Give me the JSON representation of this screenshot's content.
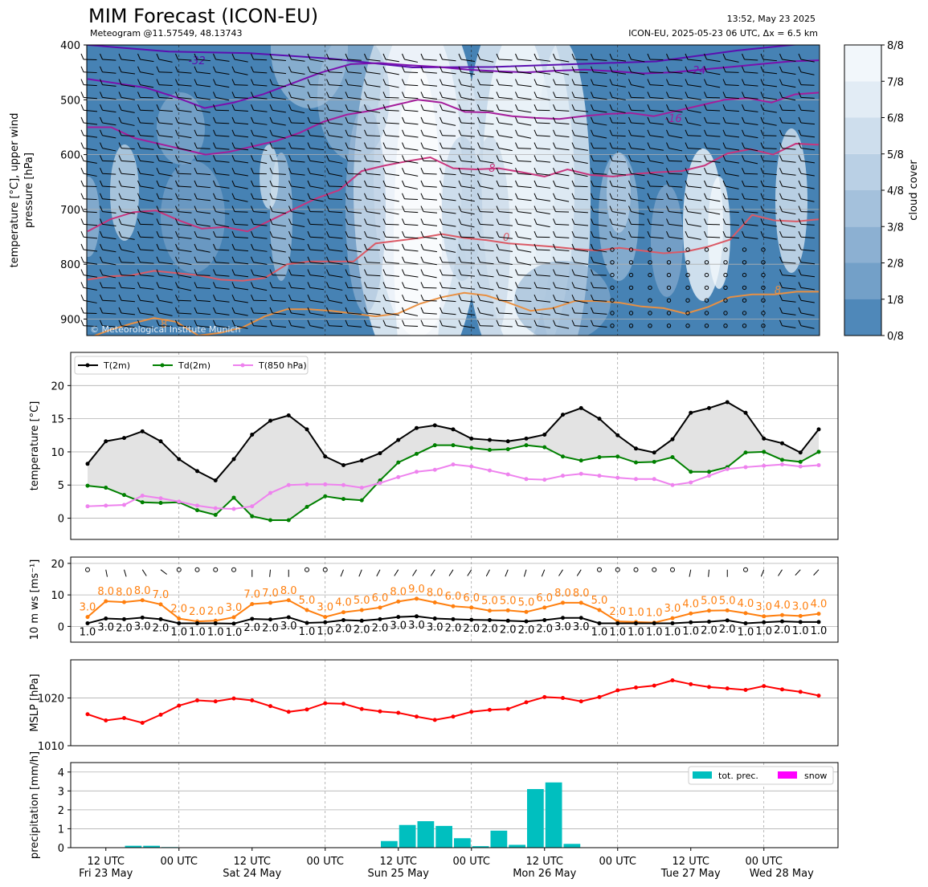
{
  "header": {
    "title": "MIM Forecast (ICON-EU)",
    "subtitle": "Meteogram @11.57549, 48.13743",
    "created": "13:52, May 23 2025",
    "run": "ICON-EU, 2025-05-23 06 UTC, Δx = 6.5 km"
  },
  "colors": {
    "t2m": "#000000",
    "td2m": "#008000",
    "t850": "#ee82ee",
    "ws": "#ff7f0e",
    "mslp": "#ff0000",
    "precip": "#00bfbf",
    "snow": "#ff00ff",
    "cloud_dark": "#4682b4",
    "cloud_light": "#f2f7fb"
  },
  "chart_data": [
    {
      "type": "heatmap",
      "name": "upper-air",
      "ylabel": "temperature [°C], upper wind\npressure [hPa]",
      "y_ticks": [
        400,
        500,
        600,
        700,
        800,
        900
      ],
      "ylim": [
        930,
        400
      ],
      "colorbar_label": "cloud cover",
      "colorbar_ticks": [
        "0/8",
        "1/8",
        "2/8",
        "3/8",
        "4/8",
        "5/8",
        "6/8",
        "7/8",
        "8/8"
      ],
      "isotherm_labels": [
        "-32",
        "-24",
        "-16",
        "-8",
        "0",
        "8"
      ],
      "copyright": "© Meteorological Institute Munich",
      "isotherms": [
        {
          "label": "-32",
          "color": "#5b0fb0",
          "p": [
            400,
            412,
            415,
            425,
            441,
            440,
            435,
            430,
            410,
            395
          ]
        },
        {
          "label": "-24",
          "color": "#7a10ad",
          "p": [
            462,
            470,
            478,
            495,
            515,
            505,
            490,
            470,
            450,
            435,
            433,
            437,
            440,
            445,
            448,
            450,
            447,
            445,
            448,
            452,
            450,
            445,
            440,
            435,
            430,
            428
          ]
        },
        {
          "label": "-16",
          "color": "#a51d9b",
          "p": [
            550,
            550,
            570,
            580,
            590,
            600,
            595,
            585,
            575,
            560,
            540,
            527,
            520,
            510,
            500,
            505,
            522,
            523,
            530,
            533,
            535,
            530,
            526,
            524,
            530,
            520,
            510,
            500,
            497,
            505,
            490,
            487
          ]
        },
        {
          "label": "-8",
          "color": "#c8357d",
          "p": [
            740,
            718,
            705,
            702,
            720,
            735,
            732,
            740,
            720,
            700,
            680,
            665,
            630,
            620,
            612,
            605,
            625,
            627,
            625,
            632,
            640,
            627,
            637,
            640,
            635,
            632,
            630,
            620,
            598,
            590,
            600,
            580,
            582
          ]
        },
        {
          "label": "0",
          "color": "#db5a66",
          "p": [
            828,
            822,
            820,
            812,
            816,
            820,
            828,
            830,
            825,
            800,
            795,
            795,
            795,
            762,
            757,
            752,
            745,
            752,
            756,
            762,
            765,
            768,
            772,
            775,
            770,
            775,
            780,
            777,
            768,
            755,
            710,
            720,
            722,
            718
          ]
        },
        {
          "label": "8",
          "color": "#e89043",
          "p": [
            935,
            920,
            908,
            898,
            905,
            930,
            925,
            915,
            895,
            882,
            882,
            885,
            890,
            895,
            890,
            872,
            860,
            852,
            857,
            870,
            885,
            880,
            867,
            867,
            870,
            877,
            880,
            890,
            878,
            860,
            855,
            855,
            850,
            850
          ]
        }
      ]
    },
    {
      "type": "line",
      "name": "temperature",
      "ylabel": "temperature [°C]",
      "ylim": [
        -3.2,
        25
      ],
      "y_ticks": [
        0,
        5,
        10,
        15,
        20
      ],
      "legend_position": "top-left",
      "series": [
        {
          "name": "T(2m)",
          "color": "#000000",
          "values": [
            8.2,
            11.6,
            12.1,
            13.1,
            11.6,
            8.9,
            7.1,
            5.7,
            8.9,
            12.6,
            14.7,
            15.5,
            13.4,
            9.3,
            8.0,
            8.7,
            9.8,
            11.8,
            13.6,
            14.0,
            13.4,
            12.0,
            11.8,
            11.6,
            12.0,
            12.6,
            15.6,
            16.6,
            15.0,
            12.5,
            10.5,
            9.9,
            11.9,
            15.9,
            16.6,
            17.5,
            15.9,
            12.0,
            11.3,
            9.9,
            13.4
          ]
        },
        {
          "name": "Td(2m)",
          "color": "#008000",
          "values": [
            4.9,
            4.6,
            3.5,
            2.4,
            2.3,
            2.4,
            1.2,
            0.5,
            3.1,
            0.3,
            -0.3,
            -0.3,
            1.7,
            3.3,
            2.9,
            2.7,
            5.7,
            8.4,
            9.7,
            11.0,
            11.0,
            10.6,
            10.3,
            10.4,
            11.0,
            10.7,
            9.3,
            8.7,
            9.2,
            9.3,
            8.4,
            8.5,
            9.2,
            7.0,
            7.0,
            7.7,
            9.9,
            10.0,
            8.8,
            8.5,
            10.0
          ]
        },
        {
          "name": "T(850 hPa)",
          "color": "#ee82ee",
          "values": [
            1.8,
            1.9,
            2.0,
            3.4,
            3.0,
            2.5,
            1.9,
            1.5,
            1.4,
            1.8,
            3.8,
            5.0,
            5.1,
            5.1,
            5.0,
            4.6,
            5.3,
            6.2,
            7.0,
            7.3,
            8.1,
            7.8,
            7.2,
            6.6,
            5.9,
            5.8,
            6.4,
            6.7,
            6.4,
            6.1,
            5.9,
            5.9,
            5.0,
            5.4,
            6.4,
            7.4,
            7.7,
            7.9,
            8.1,
            7.8,
            8.0
          ]
        }
      ]
    },
    {
      "type": "line",
      "name": "wind",
      "ylabel": "10 m ws [ms⁻¹]",
      "ylim": [
        -5,
        22
      ],
      "y_ticks": [
        0,
        10,
        20
      ],
      "series": [
        {
          "name": "ws",
          "color": "#000000",
          "values": [
            1.0,
            2.5,
            2.3,
            2.8,
            2.3,
            1.0,
            1.0,
            1.0,
            0.9,
            2.4,
            2.2,
            2.9,
            1.1,
            1.3,
            2.0,
            1.8,
            2.3,
            3.0,
            3.2,
            2.5,
            2.3,
            2.1,
            2.0,
            1.8,
            1.6,
            2.0,
            2.7,
            2.7,
            1.0,
            1.0,
            1.0,
            1.0,
            1.0,
            1.3,
            1.5,
            1.9,
            1.0,
            1.3,
            1.6,
            1.4,
            1.4
          ]
        },
        {
          "name": "gust",
          "color": "#ff7f0e",
          "values": [
            3.0,
            8.0,
            7.7,
            8.3,
            7.0,
            2.5,
            1.6,
            1.8,
            2.9,
            7.1,
            7.5,
            8.3,
            5.2,
            3.0,
            4.5,
            5.2,
            6.0,
            7.9,
            8.8,
            7.6,
            6.4,
            6.0,
            5.0,
            5.1,
            4.6,
            6.0,
            7.5,
            7.5,
            5.2,
            1.6,
            1.4,
            1.2,
            2.6,
            4.1,
            5.0,
            5.1,
            4.2,
            3.2,
            3.6,
            3.3,
            4.0
          ]
        }
      ],
      "gust_labels": [
        "3.0",
        "8.0",
        "8.0",
        "8.0",
        "7.0",
        "2.0",
        "2.0",
        "2.0",
        "3.0",
        "7.0",
        "7.0",
        "8.0",
        "5.0",
        "3.0",
        "4.0",
        "5.0",
        "6.0",
        "8.0",
        "9.0",
        "8.0",
        "6.0",
        "6.0",
        "5.0",
        "5.0",
        "5.0",
        "6.0",
        "8.0",
        "8.0",
        "5.0",
        "2.0",
        "1.0",
        "1.0",
        "3.0",
        "4.0",
        "5.0",
        "5.0",
        "4.0",
        "3.0",
        "4.0",
        "3.0",
        "4.0"
      ],
      "ws_labels": [
        "1.0",
        "3.0",
        "2.0",
        "3.0",
        "2.0",
        "1.0",
        "1.0",
        "1.0",
        "1.0",
        "2.0",
        "2.0",
        "3.0",
        "1.0",
        "1.0",
        "2.0",
        "2.0",
        "2.0",
        "3.0",
        "3.0",
        "3.0",
        "2.0",
        "2.0",
        "2.0",
        "2.0",
        "2.0",
        "2.0",
        "3.0",
        "3.0",
        "1.0",
        "1.0",
        "1.0",
        "1.0",
        "1.0",
        "1.0",
        "2.0",
        "2.0",
        "1.0",
        "1.0",
        "2.0",
        "1.0",
        "1.0"
      ],
      "barb_direction_deg": [
        0,
        280,
        285,
        300,
        320,
        0,
        0,
        0,
        0,
        270,
        265,
        270,
        0,
        0,
        250,
        250,
        245,
        240,
        240,
        240,
        240,
        240,
        245,
        250,
        255,
        250,
        240,
        240,
        0,
        0,
        0,
        0,
        0,
        260,
        265,
        270,
        0,
        250,
        240,
        230,
        230
      ]
    },
    {
      "type": "line",
      "name": "pressure",
      "ylabel": "MSLP [hPa]",
      "ylim": [
        1010,
        1028
      ],
      "y_ticks": [
        1010,
        1020
      ],
      "series": [
        {
          "name": "MSLP",
          "color": "#ff0000",
          "values": [
            1016.6,
            1015.3,
            1015.8,
            1014.8,
            1016.5,
            1018.4,
            1019.5,
            1019.3,
            1019.9,
            1019.5,
            1018.3,
            1017.1,
            1017.6,
            1018.9,
            1018.8,
            1017.7,
            1017.2,
            1016.9,
            1016.1,
            1015.4,
            1016.1,
            1017.1,
            1017.5,
            1017.7,
            1019.1,
            1020.2,
            1020.0,
            1019.3,
            1020.2,
            1021.6,
            1022.2,
            1022.6,
            1023.7,
            1022.9,
            1022.3,
            1022.0,
            1021.7,
            1022.5,
            1021.8,
            1021.3,
            1020.5
          ]
        }
      ]
    },
    {
      "type": "bar",
      "name": "precipitation",
      "ylabel": "precipitation [mm/h]",
      "ylim": [
        0,
        4.5
      ],
      "y_ticks": [
        0,
        1,
        2,
        3,
        4
      ],
      "legend_position": "top-right",
      "series": [
        {
          "name": "tot. prec.",
          "color": "#00bfbf",
          "values": [
            0,
            0.02,
            0.1,
            0.1,
            0.03,
            0,
            0,
            0,
            0,
            0,
            0,
            0,
            0,
            0,
            0,
            0.02,
            0.35,
            1.2,
            1.4,
            1.15,
            0.5,
            0.08,
            0.9,
            0.15,
            3.1,
            3.45,
            0.2,
            0,
            0,
            0,
            0,
            0.02,
            0.02,
            0,
            0,
            0,
            0,
            0,
            0,
            0,
            0
          ]
        },
        {
          "name": "snow",
          "color": "#ff00ff",
          "values": [
            0,
            0,
            0,
            0,
            0,
            0,
            0,
            0,
            0,
            0,
            0,
            0,
            0,
            0,
            0,
            0,
            0,
            0,
            0,
            0,
            0,
            0,
            0,
            0,
            0,
            0,
            0,
            0,
            0,
            0,
            0,
            0,
            0,
            0,
            0,
            0,
            0,
            0,
            0,
            0,
            0
          ]
        }
      ]
    }
  ],
  "x_axis": {
    "hours_per_step": 3,
    "major_labels": [
      {
        "step": 1,
        "label": "12 UTC",
        "sub": "Fri 23 May"
      },
      {
        "step": 5,
        "label": "00 UTC",
        "sub": ""
      },
      {
        "step": 9,
        "label": "12 UTC",
        "sub": "Sat 24 May"
      },
      {
        "step": 13,
        "label": "00 UTC",
        "sub": ""
      },
      {
        "step": 17,
        "label": "12 UTC",
        "sub": "Sun 25 May"
      },
      {
        "step": 21,
        "label": "00 UTC",
        "sub": ""
      },
      {
        "step": 25,
        "label": "12 UTC",
        "sub": "Mon 26 May"
      },
      {
        "step": 29,
        "label": "00 UTC",
        "sub": ""
      },
      {
        "step": 33,
        "label": "12 UTC",
        "sub": "Tue 27 May"
      },
      {
        "step": 37,
        "label": "00 UTC",
        "sub": "Wed 28 May"
      }
    ]
  }
}
